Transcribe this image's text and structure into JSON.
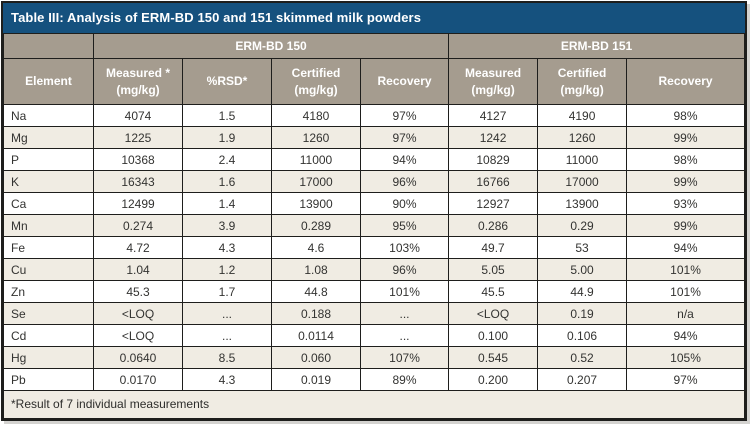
{
  "table": {
    "title": "Table III: Analysis of ERM-BD 150 and 151 skimmed milk powders",
    "groups": {
      "erm_bd_150": "ERM-BD 150",
      "erm_bd_151": "ERM-BD 151"
    },
    "columns": [
      "Element",
      "Measured *\n(mg/kg)",
      "%RSD*",
      "Certified\n(mg/kg)",
      "Recovery",
      "Measured\n(mg/kg)",
      "Certified\n(mg/kg)",
      "Recovery"
    ],
    "rows": [
      [
        "Na",
        "4074",
        "1.5",
        "4180",
        "97%",
        "4127",
        "4190",
        "98%"
      ],
      [
        "Mg",
        "1225",
        "1.9",
        "1260",
        "97%",
        "1242",
        "1260",
        "99%"
      ],
      [
        "P",
        "10368",
        "2.4",
        "11000",
        "94%",
        "10829",
        "11000",
        "98%"
      ],
      [
        "K",
        "16343",
        "1.6",
        "17000",
        "96%",
        "16766",
        "17000",
        "99%"
      ],
      [
        "Ca",
        "12499",
        "1.4",
        "13900",
        "90%",
        "12927",
        "13900",
        "93%"
      ],
      [
        "Mn",
        "0.274",
        "3.9",
        "0.289",
        "95%",
        "0.286",
        "0.29",
        "99%"
      ],
      [
        "Fe",
        "4.72",
        "4.3",
        "4.6",
        "103%",
        "49.7",
        "53",
        "94%"
      ],
      [
        "Cu",
        "1.04",
        "1.2",
        "1.08",
        "96%",
        "5.05",
        "5.00",
        "101%"
      ],
      [
        "Zn",
        "45.3",
        "1.7",
        "44.8",
        "101%",
        "45.5",
        "44.9",
        "101%"
      ],
      [
        "Se",
        "<LOQ",
        "...",
        "0.188",
        "...",
        "<LOQ",
        "0.19",
        "n/a"
      ],
      [
        "Cd",
        "<LOQ",
        "...",
        "0.0114",
        "...",
        "0.100",
        "0.106",
        "94%"
      ],
      [
        "Hg",
        "0.0640",
        "8.5",
        "0.060",
        "107%",
        "0.545",
        "0.52",
        "105%"
      ],
      [
        "Pb",
        "0.0170",
        "4.3",
        "0.019",
        "89%",
        "0.200",
        "0.207",
        "97%"
      ]
    ],
    "footnote": "*Result of 7 individual measurements",
    "colors": {
      "title_bg": "#15517e",
      "header_bg": "#a59c8f",
      "row_alt_bg": "#f0ece3",
      "border": "#1e1e1c",
      "text": "#333331"
    }
  },
  "chart_data": {
    "type": "table",
    "title": "Table III: Analysis of ERM-BD 150 and 151 skimmed milk powders",
    "column_groups": [
      "",
      "ERM-BD 150",
      "ERM-BD 150",
      "ERM-BD 150",
      "ERM-BD 150",
      "ERM-BD 151",
      "ERM-BD 151",
      "ERM-BD 151"
    ],
    "columns": [
      "Element",
      "Measured * (mg/kg)",
      "%RSD*",
      "Certified (mg/kg)",
      "Recovery",
      "Measured (mg/kg)",
      "Certified (mg/kg)",
      "Recovery"
    ],
    "rows": [
      [
        "Na",
        "4074",
        "1.5",
        "4180",
        "97%",
        "4127",
        "4190",
        "98%"
      ],
      [
        "Mg",
        "1225",
        "1.9",
        "1260",
        "97%",
        "1242",
        "1260",
        "99%"
      ],
      [
        "P",
        "10368",
        "2.4",
        "11000",
        "94%",
        "10829",
        "11000",
        "98%"
      ],
      [
        "K",
        "16343",
        "1.6",
        "17000",
        "96%",
        "16766",
        "17000",
        "99%"
      ],
      [
        "Ca",
        "12499",
        "1.4",
        "13900",
        "90%",
        "12927",
        "13900",
        "93%"
      ],
      [
        "Mn",
        "0.274",
        "3.9",
        "0.289",
        "95%",
        "0.286",
        "0.29",
        "99%"
      ],
      [
        "Fe",
        "4.72",
        "4.3",
        "4.6",
        "103%",
        "49.7",
        "53",
        "94%"
      ],
      [
        "Cu",
        "1.04",
        "1.2",
        "1.08",
        "96%",
        "5.05",
        "5.00",
        "101%"
      ],
      [
        "Zn",
        "45.3",
        "1.7",
        "44.8",
        "101%",
        "45.5",
        "44.9",
        "101%"
      ],
      [
        "Se",
        "<LOQ",
        "...",
        "0.188",
        "...",
        "<LOQ",
        "0.19",
        "n/a"
      ],
      [
        "Cd",
        "<LOQ",
        "...",
        "0.0114",
        "...",
        "0.100",
        "0.106",
        "94%"
      ],
      [
        "Hg",
        "0.0640",
        "8.5",
        "0.060",
        "107%",
        "0.545",
        "0.52",
        "105%"
      ],
      [
        "Pb",
        "0.0170",
        "4.3",
        "0.019",
        "89%",
        "0.200",
        "0.207",
        "97%"
      ]
    ],
    "footnote": "*Result of 7 individual measurements"
  }
}
